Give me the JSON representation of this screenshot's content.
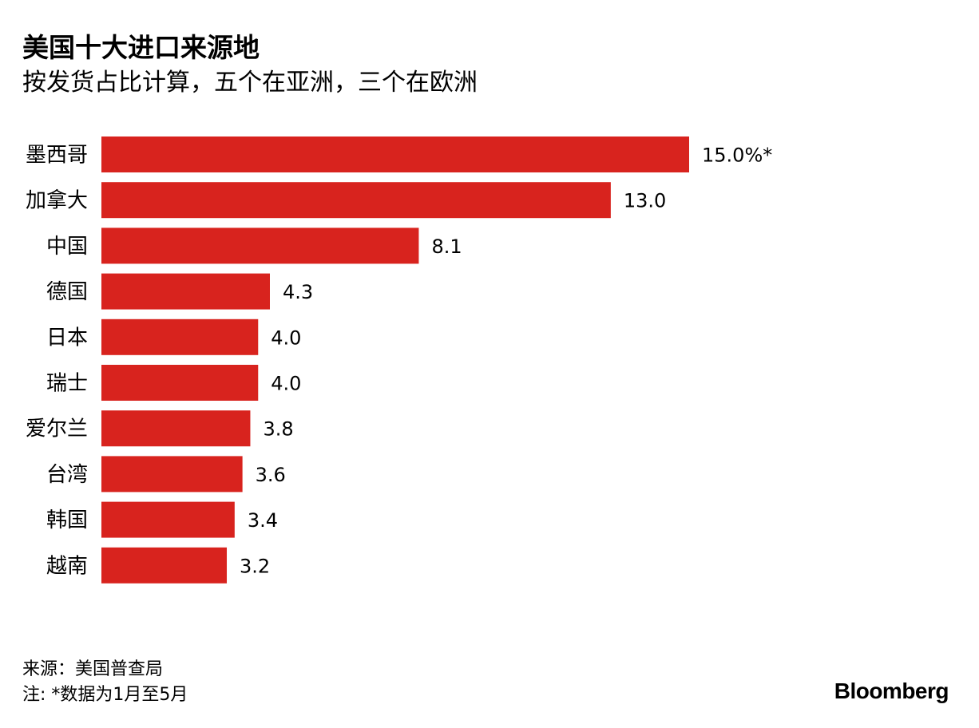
{
  "chart_data": {
    "type": "bar",
    "orientation": "horizontal",
    "title": "美国十大进口来源地",
    "subtitle": "按发货占比计算，五个在亚洲，三个在欧洲",
    "categories": [
      "墨西哥",
      "加拿大",
      "中国",
      "德国",
      "日本",
      "瑞士",
      "爱尔兰",
      "台湾",
      "韩国",
      "越南"
    ],
    "values": [
      15.0,
      13.0,
      8.1,
      4.3,
      4.0,
      4.0,
      3.8,
      3.6,
      3.4,
      3.2
    ],
    "value_labels": [
      "15.0%*",
      "13.0",
      "8.1",
      "4.3",
      "4.0",
      "4.0",
      "3.8",
      "3.6",
      "3.4",
      "3.2"
    ],
    "unit": "%",
    "xlim": [
      0,
      15.0
    ],
    "grid": false,
    "bar_color": "#d8231e"
  },
  "footer": {
    "source": "来源：美国普查局",
    "note": "注: *数据为1月至5月",
    "logo": "Bloomberg"
  }
}
